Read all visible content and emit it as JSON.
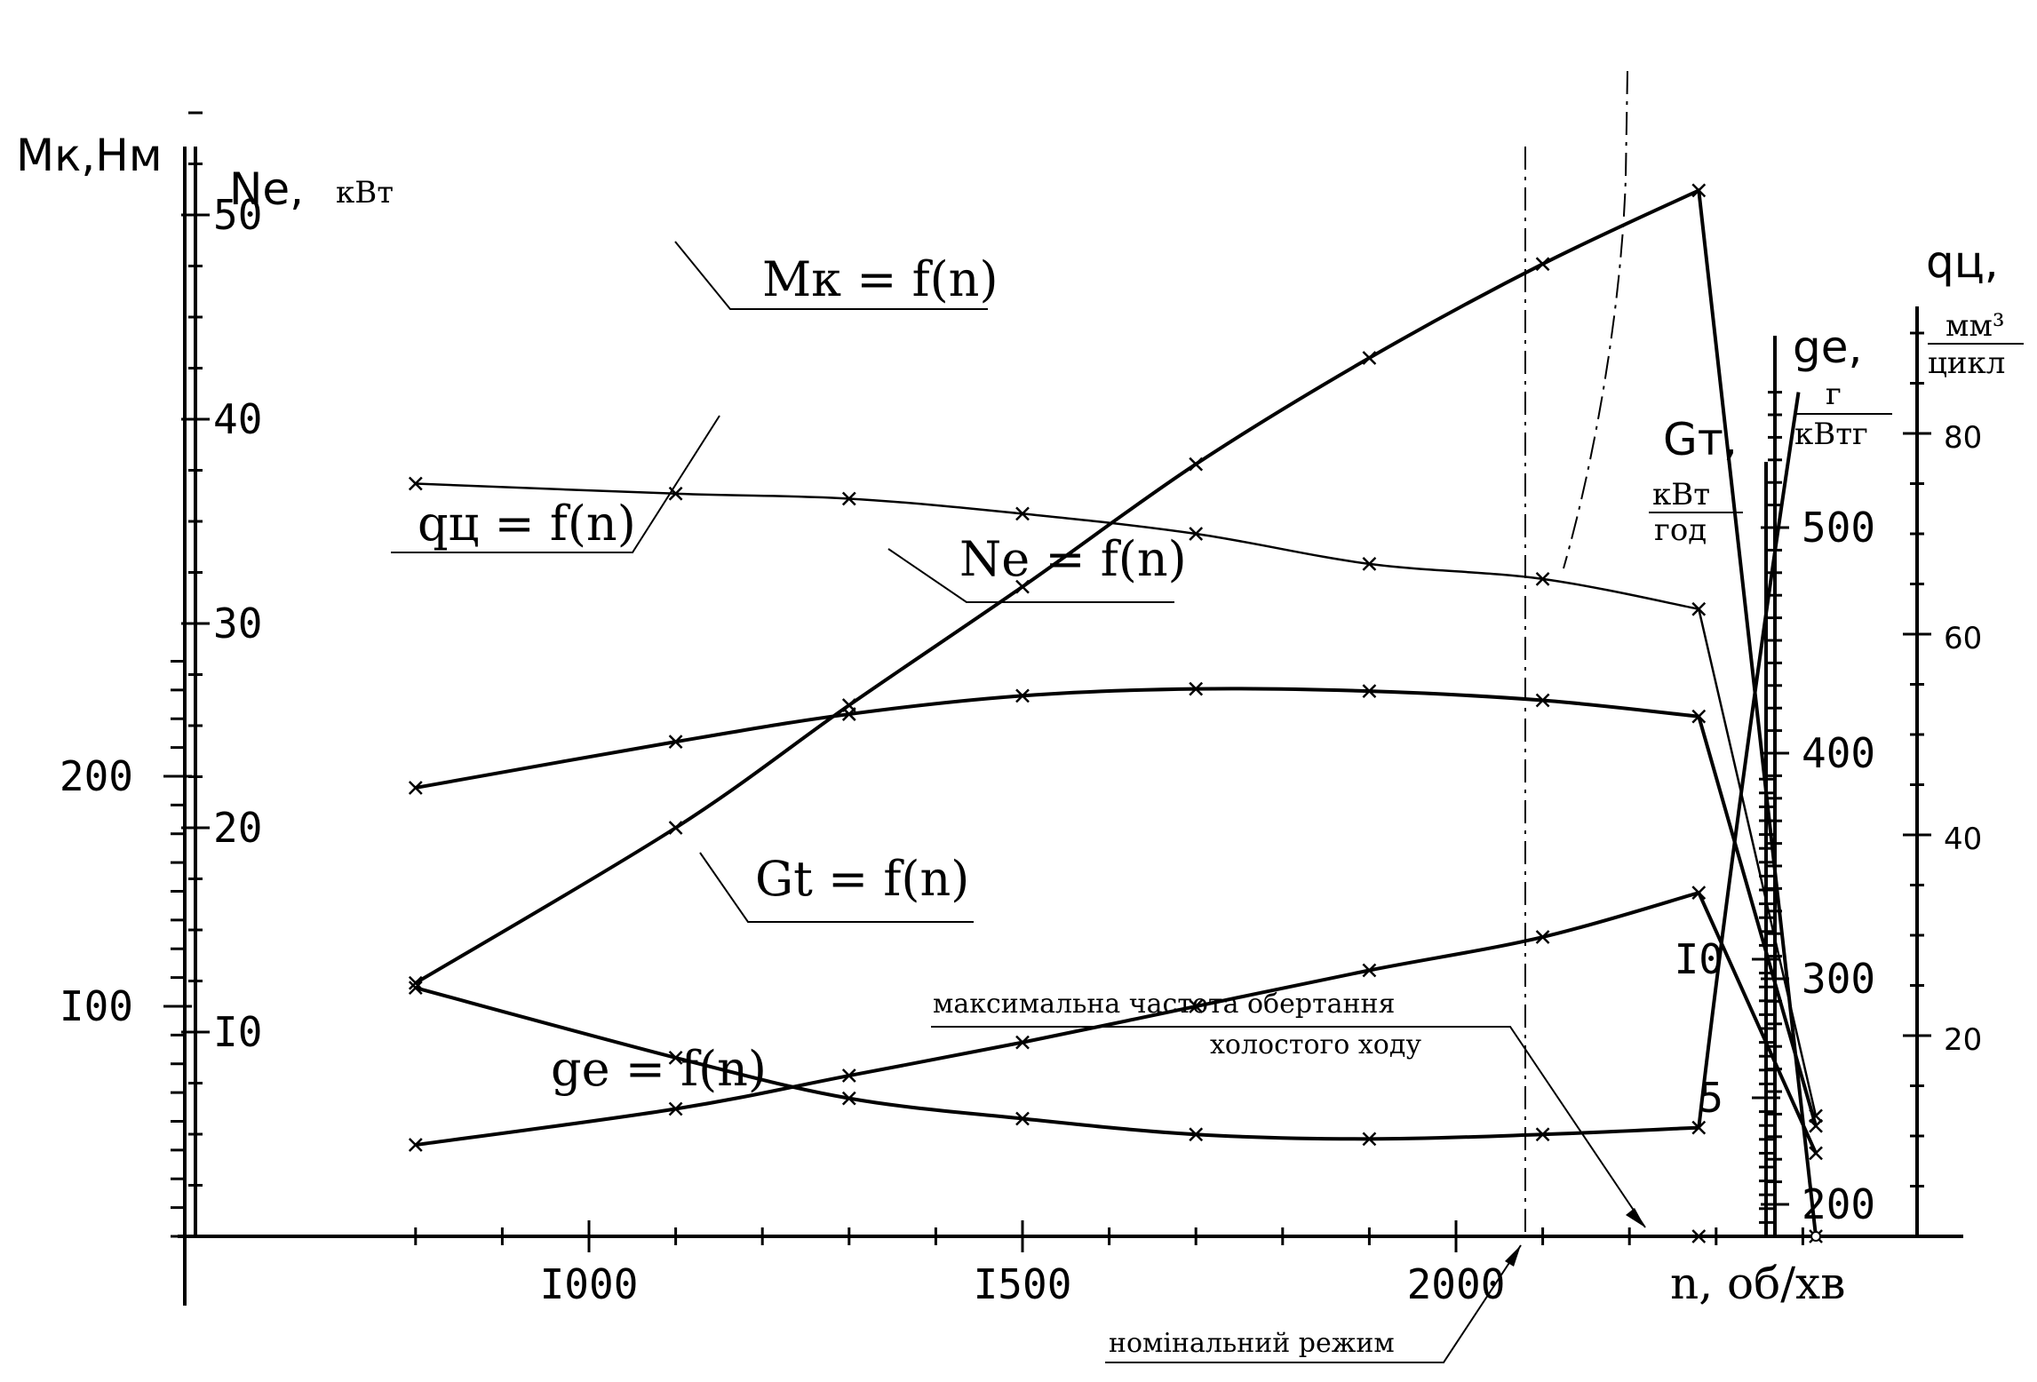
{
  "chart_data": {
    "type": "line",
    "x": {
      "label": "n, об/хв",
      "ticks": [
        1000,
        1500,
        2000
      ],
      "range": [
        750,
        2500
      ]
    },
    "axes": {
      "Mk": {
        "title": "Мк,Нм",
        "ticks": [
          100,
          200
        ],
        "tick_labels": [
          "I00",
          "200"
        ],
        "range": [
          0,
          250
        ]
      },
      "Ne": {
        "title": "Ne,",
        "unit": "кВт",
        "ticks": [
          10,
          20,
          30,
          40,
          50
        ],
        "tick_labels": [
          "I0",
          "20",
          "30",
          "40",
          "50"
        ],
        "range": [
          0,
          56
        ]
      },
      "Gt": {
        "title": "Gт,",
        "unit_num": "кВт",
        "unit_den": "год",
        "ticks": [
          5,
          10
        ],
        "tick_labels": [
          "5",
          "I0"
        ],
        "range": [
          0,
          16.7
        ]
      },
      "ge": {
        "title": "ge,",
        "unit_num": "г",
        "unit_den": "кВтг",
        "ticks": [
          200,
          300,
          400,
          500
        ],
        "tick_labels": [
          "200",
          "300",
          "400",
          "500"
        ],
        "range": [
          200,
          560
        ]
      },
      "qc": {
        "title": "qц,",
        "unit_num": "мм³",
        "unit_den": "цикл",
        "ticks": [
          20,
          40,
          60,
          80
        ],
        "tick_labels": [
          "20",
          "40",
          "60",
          "80"
        ],
        "range": [
          0,
          92
        ]
      }
    },
    "series": [
      {
        "name": "Mк = f(n)",
        "x": [
          800,
          1100,
          1300,
          1500,
          1700,
          1900,
          2100,
          2280,
          2415
        ],
        "y": [
          195,
          215,
          227,
          235,
          238,
          237,
          233,
          226,
          48
        ]
      },
      {
        "name": "qц = f(n)",
        "x": [
          800,
          1100,
          1300,
          1500,
          1700,
          1900,
          2100,
          2280,
          2415
        ],
        "y": [
          75,
          74,
          73.5,
          72,
          70,
          67,
          65.5,
          62.5,
          12
        ]
      },
      {
        "name": "Ne = f(n)",
        "x": [
          800,
          1100,
          1300,
          1500,
          1700,
          1900,
          2100,
          2280,
          2415
        ],
        "y": [
          12.4,
          20,
          26,
          31.8,
          37.8,
          43,
          47.6,
          51.2,
          0
        ]
      },
      {
        "name": "Gt = f(n)",
        "x": [
          800,
          1100,
          1300,
          1500,
          1700,
          1900,
          2100,
          2280,
          2415
        ],
        "y": [
          3.3,
          4.6,
          5.8,
          7.0,
          8.3,
          9.6,
          10.8,
          12.4,
          3.0
        ]
      },
      {
        "name": "ge = f(n)",
        "x": [
          800,
          1100,
          1300,
          1500,
          1700,
          1900,
          2100,
          2280
        ],
        "y": [
          296,
          265,
          247,
          238,
          231,
          229,
          231,
          234
        ]
      }
    ],
    "annotations": {
      "nominal": "номінальний режим",
      "max_idle_line1": "максимальна частота обертання",
      "max_idle_line2": "холостого  ходу"
    }
  }
}
